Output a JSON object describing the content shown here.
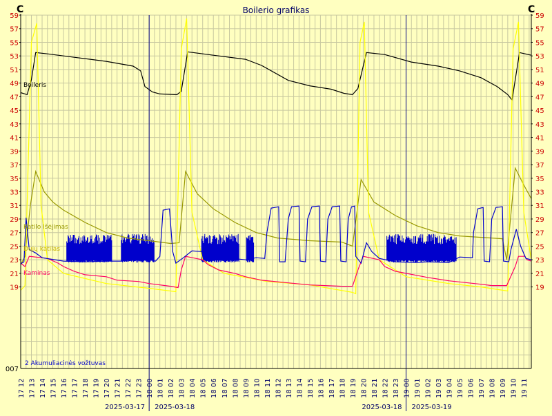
{
  "chart_data": {
    "type": "line",
    "title": "Boilerio grafikas",
    "unit_left": "C",
    "unit_right": "C",
    "ylim": [
      7,
      59
    ],
    "y_ticks": [
      59,
      57,
      55,
      53,
      51,
      49,
      47,
      45,
      43,
      41,
      39,
      37,
      35,
      33,
      31,
      29,
      27,
      25,
      23,
      21,
      19
    ],
    "y_tick_labels": [
      "59",
      "57",
      "55",
      "53",
      "51",
      "49",
      "47",
      "45",
      "43",
      "41",
      "39",
      "37",
      "35",
      "33",
      "31",
      "29",
      "27",
      "25",
      "23",
      "21",
      "19"
    ],
    "y_bottom_label": "007",
    "x_labels": [
      "17 12",
      "17 13",
      "17 14",
      "17 15",
      "17 16",
      "17 17",
      "17 18",
      "17 19",
      "17 20",
      "17 21",
      "17 22",
      "17 23",
      "18 00",
      "18 01",
      "18 02",
      "18 03",
      "18 04",
      "18 05",
      "18 06",
      "18 07",
      "18 08",
      "18 09",
      "18 10",
      "18 11",
      "18 12",
      "18 13",
      "18 14",
      "18 15",
      "18 16",
      "18 17",
      "18 18",
      "18 19",
      "18 20",
      "18 21",
      "18 22",
      "18 23",
      "19 00",
      "19 01",
      "19 02",
      "19 03",
      "19 04",
      "19 05",
      "19 06",
      "19 07",
      "19 08",
      "19 09",
      "19 10",
      "19 11"
    ],
    "x_range_hours": [
      0,
      47.7
    ],
    "day_separators_hours": [
      12,
      36
    ],
    "date_labels": [
      {
        "text": "2025-03-17",
        "at_hour": 12,
        "side": "left"
      },
      {
        "text": "2025-03-18",
        "at_hour": 12,
        "side": "right"
      },
      {
        "text": "2025-03-18",
        "at_hour": 36,
        "side": "left"
      },
      {
        "text": "2025-03-19",
        "at_hour": 36,
        "side": "right"
      }
    ],
    "series": [
      {
        "name": "Boileris",
        "color": "#000000",
        "points": [
          [
            0,
            47.6
          ],
          [
            0.6,
            47.3
          ],
          [
            1.0,
            49.5
          ],
          [
            1.4,
            53.5
          ],
          [
            2.5,
            53.3
          ],
          [
            5,
            52.8
          ],
          [
            8,
            52.2
          ],
          [
            10.5,
            51.5
          ],
          [
            11.2,
            50.8
          ],
          [
            11.6,
            48.5
          ],
          [
            12.3,
            47.7
          ],
          [
            13,
            47.4
          ],
          [
            14.6,
            47.3
          ],
          [
            15.0,
            47.8
          ],
          [
            15.6,
            53.6
          ],
          [
            18,
            53.1
          ],
          [
            21,
            52.5
          ],
          [
            22.5,
            51.6
          ],
          [
            25,
            49.4
          ],
          [
            27,
            48.6
          ],
          [
            29,
            48.1
          ],
          [
            30.2,
            47.5
          ],
          [
            31,
            47.3
          ],
          [
            31.5,
            48.2
          ],
          [
            32.3,
            53.5
          ],
          [
            34,
            53.2
          ],
          [
            36.5,
            52.1
          ],
          [
            39,
            51.5
          ],
          [
            41,
            50.8
          ],
          [
            43,
            49.8
          ],
          [
            44.5,
            48.5
          ],
          [
            45.5,
            47.3
          ],
          [
            45.9,
            46.5
          ],
          [
            46.6,
            53.5
          ],
          [
            47.7,
            53.1
          ]
        ]
      },
      {
        "name": "Katilo išėjimas",
        "color": "#999900",
        "points": [
          [
            0,
            22.3
          ],
          [
            0.4,
            23.5
          ],
          [
            0.9,
            31
          ],
          [
            1.4,
            36
          ],
          [
            2.2,
            33
          ],
          [
            3,
            31.5
          ],
          [
            4,
            30.3
          ],
          [
            6,
            28.5
          ],
          [
            8,
            27
          ],
          [
            10,
            26.2
          ],
          [
            12,
            25.8
          ],
          [
            14,
            25.4
          ],
          [
            14.8,
            25.5
          ],
          [
            15.4,
            36
          ],
          [
            16.5,
            32.7
          ],
          [
            18,
            30.5
          ],
          [
            20,
            28.5
          ],
          [
            22,
            27
          ],
          [
            24,
            26.2
          ],
          [
            27,
            25.8
          ],
          [
            30,
            25.6
          ],
          [
            31,
            25
          ],
          [
            31.8,
            34.8
          ],
          [
            33,
            31.5
          ],
          [
            35,
            29.5
          ],
          [
            37,
            28
          ],
          [
            39,
            27
          ],
          [
            41,
            26.5
          ],
          [
            43,
            26.3
          ],
          [
            45,
            26.1
          ],
          [
            45.4,
            23
          ],
          [
            46.2,
            36.5
          ],
          [
            47,
            34
          ],
          [
            47.7,
            32
          ]
        ]
      },
      {
        "name": "Dujų katilas",
        "color": "#ffff00",
        "points": [
          [
            0,
            18.5
          ],
          [
            0.4,
            19.2
          ],
          [
            1.0,
            55
          ],
          [
            1.5,
            57.8
          ],
          [
            1.9,
            31
          ],
          [
            2.5,
            23
          ],
          [
            4,
            21
          ],
          [
            8,
            19.5
          ],
          [
            12,
            18.8
          ],
          [
            14.5,
            18.3
          ],
          [
            15.0,
            54
          ],
          [
            15.5,
            58.5
          ],
          [
            16,
            30
          ],
          [
            17,
            23
          ],
          [
            19,
            21
          ],
          [
            23,
            19.8
          ],
          [
            27,
            19.3
          ],
          [
            31,
            18.2
          ],
          [
            31.3,
            18
          ],
          [
            31.7,
            55
          ],
          [
            32.1,
            58
          ],
          [
            32.5,
            30
          ],
          [
            33.5,
            23
          ],
          [
            36,
            20.5
          ],
          [
            40,
            19.5
          ],
          [
            43,
            19
          ],
          [
            45.5,
            18.4
          ],
          [
            46,
            54
          ],
          [
            46.5,
            58
          ],
          [
            47,
            30
          ],
          [
            47.7,
            23
          ]
        ]
      },
      {
        "name": "Kaminas",
        "color": "#ff0066",
        "points": [
          [
            0,
            22.5
          ],
          [
            0.4,
            22
          ],
          [
            0.8,
            23.5
          ],
          [
            2.5,
            23.2
          ],
          [
            3.5,
            22.5
          ],
          [
            4,
            22
          ],
          [
            5,
            21.3
          ],
          [
            6,
            20.8
          ],
          [
            8,
            20.5
          ],
          [
            9,
            20
          ],
          [
            11,
            19.8
          ],
          [
            12,
            19.5
          ],
          [
            14,
            19.1
          ],
          [
            14.7,
            18.9
          ],
          [
            15.0,
            21.5
          ],
          [
            15.4,
            23.5
          ],
          [
            17,
            23
          ],
          [
            17.5,
            22.3
          ],
          [
            18.5,
            21.5
          ],
          [
            20,
            21
          ],
          [
            21,
            20.5
          ],
          [
            22.5,
            20
          ],
          [
            25,
            19.6
          ],
          [
            27,
            19.3
          ],
          [
            30,
            19.1
          ],
          [
            31,
            19.1
          ],
          [
            31.5,
            21.5
          ],
          [
            32,
            23.5
          ],
          [
            33.5,
            23
          ],
          [
            34,
            22
          ],
          [
            35,
            21.3
          ],
          [
            36,
            21
          ],
          [
            37,
            20.7
          ],
          [
            38,
            20.4
          ],
          [
            40,
            19.9
          ],
          [
            43,
            19.4
          ],
          [
            44,
            19.2
          ],
          [
            45.4,
            19.2
          ],
          [
            46.2,
            22
          ],
          [
            46.5,
            23.5
          ],
          [
            47.1,
            23.5
          ],
          [
            47.3,
            23
          ],
          [
            47.7,
            22.8
          ]
        ]
      },
      {
        "name": "2 Akumuliacinės vožtuvas",
        "color": "#0000cc",
        "points": [
          [
            0,
            22.4
          ],
          [
            0.3,
            22.7
          ],
          [
            0.5,
            29.2
          ],
          [
            0.8,
            24.5
          ],
          [
            1.4,
            24
          ],
          [
            2,
            23.3
          ],
          [
            4,
            22.8
          ],
          [
            6,
            22.7
          ],
          [
            8,
            22.8
          ],
          [
            9.5,
            22.8
          ],
          [
            10,
            23
          ],
          [
            11.2,
            23.3
          ],
          [
            12,
            23
          ],
          [
            12.6,
            22.8
          ],
          [
            13,
            23.5
          ],
          [
            13.3,
            30.3
          ],
          [
            13.9,
            30.5
          ],
          [
            14.2,
            24.2
          ],
          [
            14.5,
            22.5
          ],
          [
            15.2,
            23.3
          ],
          [
            16,
            24.3
          ],
          [
            17,
            24.2
          ],
          [
            18,
            23.5
          ],
          [
            21,
            23
          ],
          [
            22,
            23.3
          ],
          [
            22.8,
            23.2
          ],
          [
            23,
            27
          ],
          [
            23.4,
            30.6
          ],
          [
            24.1,
            30.8
          ],
          [
            24.2,
            22.7
          ],
          [
            24.7,
            22.7
          ],
          [
            25.0,
            29
          ],
          [
            25.3,
            30.8
          ],
          [
            26,
            30.9
          ],
          [
            26.1,
            22.8
          ],
          [
            26.6,
            22.7
          ],
          [
            26.8,
            29
          ],
          [
            27.2,
            30.8
          ],
          [
            27.9,
            30.9
          ],
          [
            28,
            22.8
          ],
          [
            28.5,
            22.7
          ],
          [
            28.7,
            29
          ],
          [
            29.1,
            30.8
          ],
          [
            29.8,
            30.9
          ],
          [
            29.9,
            22.8
          ],
          [
            30.4,
            22.7
          ],
          [
            30.6,
            29
          ],
          [
            30.9,
            30.8
          ],
          [
            31.2,
            30.9
          ],
          [
            31.3,
            23.5
          ],
          [
            31.8,
            22.5
          ],
          [
            32.3,
            25.5
          ],
          [
            32.8,
            24.2
          ],
          [
            33.5,
            23.2
          ],
          [
            35,
            22.7
          ],
          [
            37,
            22.6
          ],
          [
            38,
            22.7
          ],
          [
            40,
            22.6
          ],
          [
            41,
            23.4
          ],
          [
            42.2,
            23.3
          ],
          [
            42.3,
            27
          ],
          [
            42.7,
            30.5
          ],
          [
            43.2,
            30.7
          ],
          [
            43.3,
            22.8
          ],
          [
            43.8,
            22.7
          ],
          [
            44,
            29
          ],
          [
            44.4,
            30.7
          ],
          [
            45,
            30.8
          ],
          [
            45.1,
            22.8
          ],
          [
            45.6,
            22.7
          ],
          [
            45.8,
            24.5
          ],
          [
            46.3,
            27.5
          ],
          [
            46.7,
            25
          ],
          [
            47.2,
            23.2
          ],
          [
            47.7,
            23
          ]
        ],
        "oscillation_bursts_hours": [
          [
            4.3,
            8.5
          ],
          [
            9.4,
            12.5
          ],
          [
            16.9,
            20.4
          ],
          [
            21.1,
            21.8
          ],
          [
            34.2,
            40.7
          ]
        ],
        "oscillation_range": [
          22.6,
          26.8
        ]
      }
    ],
    "grid": true
  }
}
